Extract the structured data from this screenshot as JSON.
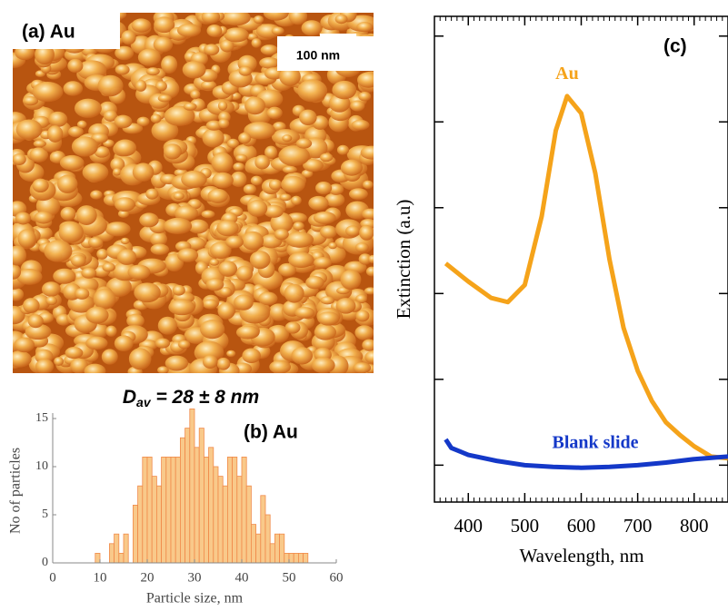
{
  "image_panel": {
    "label": "(a) Au",
    "scale_bar": "100 nm"
  },
  "mean_label": {
    "symbol": "D",
    "subscript": "av",
    "text": " = 28 ± 8 nm"
  },
  "chart_data": [
    {
      "type": "histogram",
      "label": "(b) Au",
      "x_label": "Particle size, nm",
      "y_label": "No of particles",
      "bins": [
        9,
        10,
        11,
        12,
        13,
        14,
        15,
        16,
        17,
        18,
        19,
        20,
        21,
        22,
        23,
        24,
        25,
        26,
        27,
        28,
        29,
        30,
        31,
        32,
        33,
        34,
        35,
        36,
        37,
        38,
        39,
        40,
        41,
        42,
        43,
        44,
        45,
        46,
        47,
        48,
        49,
        50,
        51,
        52,
        53,
        54
      ],
      "values": [
        1,
        0,
        0,
        2,
        3,
        1,
        3,
        0,
        6,
        8,
        11,
        11,
        9,
        8,
        11,
        11,
        11,
        11,
        13,
        14,
        16,
        12,
        14,
        11,
        12,
        10,
        9,
        8,
        11,
        11,
        9,
        11,
        8,
        4,
        3,
        7,
        5,
        2,
        3,
        3,
        1,
        1,
        1,
        1,
        1
      ],
      "color": "#f9c98a",
      "edge_color": "#f08a4a",
      "xlim": [
        0,
        60
      ],
      "xticks": [
        0,
        10,
        20,
        30,
        40,
        50,
        60
      ],
      "ylim": [
        0,
        15
      ],
      "yticks": [
        0,
        5,
        10,
        15
      ]
    },
    {
      "type": "line",
      "label": "(c)",
      "x_label": "Wavelength, nm",
      "y_label": "Extinction (a.u)",
      "xlim": [
        340,
        860
      ],
      "xticks": [
        400,
        500,
        600,
        700,
        800
      ],
      "ylim": [
        -0.43,
        5.23
      ],
      "yticks": [
        0,
        1,
        2,
        3,
        4,
        5
      ],
      "series": [
        {
          "name": "Au",
          "color": "#f5a31a",
          "x": [
            360,
            400,
            440,
            470,
            500,
            530,
            555,
            575,
            600,
            625,
            650,
            675,
            700,
            725,
            750,
            775,
            800,
            830,
            860
          ],
          "values": [
            2.35,
            2.14,
            1.95,
            1.9,
            2.1,
            2.9,
            3.9,
            4.3,
            4.1,
            3.4,
            2.4,
            1.6,
            1.1,
            0.75,
            0.5,
            0.35,
            0.22,
            0.1,
            0.08
          ]
        },
        {
          "name": "Blank slide",
          "color": "#1438c8",
          "x": [
            360,
            370,
            400,
            450,
            500,
            550,
            600,
            650,
            700,
            750,
            800,
            860
          ],
          "values": [
            0.3,
            0.2,
            0.12,
            0.05,
            0.0,
            -0.02,
            -0.03,
            -0.02,
            0.0,
            0.03,
            0.07,
            0.1
          ]
        }
      ],
      "series_label_positions": [
        [
          575,
          4.55
        ],
        [
          625,
          0.25
        ]
      ]
    }
  ]
}
